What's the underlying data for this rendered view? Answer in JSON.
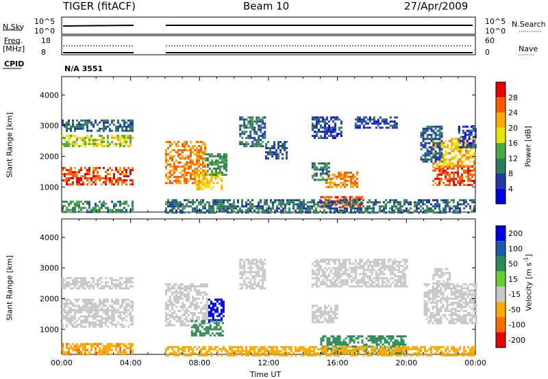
{
  "header": {
    "radar": "TIGER (fitACF)",
    "beam": "Beam 10",
    "date": "27/Apr/2009"
  },
  "summary_panel": {
    "nsky_label": "N.Sky",
    "nsky_ticks": [
      "10^5",
      "10^0"
    ],
    "nsearch_label": "N.Search",
    "nsearch_ticks": [
      "10^5",
      "10^0"
    ],
    "freq_label": "Freq.",
    "freq_unit": "[MHz]",
    "freq_ticks": [
      "18",
      "8"
    ],
    "nave_label": "Nave",
    "nave_ticks": [
      "60",
      "0"
    ],
    "cpid_label": "CPID",
    "cpid_value": "N/A 3551"
  },
  "chart_data": [
    {
      "type": "heatmap",
      "title": "",
      "xlabel": "",
      "ylabel": "Slant Range [km]",
      "xlim": [
        0,
        24
      ],
      "ylim": [
        180,
        4600
      ],
      "ytick_values": [
        1000,
        2000,
        3000,
        4000
      ],
      "ytick_labels": [
        "1000",
        "2000",
        "3000",
        "4000"
      ],
      "colorbar": {
        "label": "Power [dB]",
        "tick_labels": [
          "4",
          "8",
          "12",
          "16",
          "20",
          "24",
          "28"
        ],
        "tick_values": [
          4,
          8,
          12,
          16,
          20,
          24,
          28
        ],
        "range": [
          0,
          32
        ],
        "colors": [
          "#0000e6",
          "#1e3aa8",
          "#2e7d5a",
          "#4aa845",
          "#e6e600",
          "#ffaa00",
          "#ff5a00",
          "#e60000"
        ]
      },
      "regions": [
        {
          "t": [
            0.0,
            4.1
          ],
          "r": [
            1050,
            1650
          ],
          "level": 27
        },
        {
          "t": [
            0.0,
            4.1
          ],
          "r": [
            2300,
            2700
          ],
          "level": 17
        },
        {
          "t": [
            0.0,
            4.1
          ],
          "r": [
            2850,
            3200
          ],
          "level": 8
        },
        {
          "t": [
            0.0,
            4.1
          ],
          "r": [
            180,
            550
          ],
          "level": 11
        },
        {
          "t": [
            6.0,
            8.3
          ],
          "r": [
            1100,
            2500
          ],
          "level": 24
        },
        {
          "t": [
            7.8,
            9.3
          ],
          "r": [
            900,
            1500
          ],
          "level": 20
        },
        {
          "t": [
            8.3,
            9.6
          ],
          "r": [
            1400,
            2100
          ],
          "level": 12
        },
        {
          "t": [
            10.3,
            11.8
          ],
          "r": [
            2300,
            3300
          ],
          "level": 9
        },
        {
          "t": [
            11.8,
            13.0
          ],
          "r": [
            1900,
            2500
          ],
          "level": 8
        },
        {
          "t": [
            14.5,
            16.2
          ],
          "r": [
            2600,
            3300
          ],
          "level": 6
        },
        {
          "t": [
            17.0,
            19.5
          ],
          "r": [
            2900,
            3300
          ],
          "level": 6
        },
        {
          "t": [
            15.3,
            17.2
          ],
          "r": [
            1000,
            1500
          ],
          "level": 24
        },
        {
          "t": [
            14.5,
            15.5
          ],
          "r": [
            1200,
            1800
          ],
          "level": 10
        },
        {
          "t": [
            15.0,
            17.5
          ],
          "r": [
            300,
            700
          ],
          "level": 26
        },
        {
          "t": [
            6.0,
            24.0
          ],
          "r": [
            180,
            600
          ],
          "level": 9
        },
        {
          "t": [
            21.5,
            24.0
          ],
          "r": [
            1050,
            1700
          ],
          "level": 27
        },
        {
          "t": [
            21.5,
            24.0
          ],
          "r": [
            1700,
            2600
          ],
          "level": 21
        },
        {
          "t": [
            20.8,
            22.0
          ],
          "r": [
            1800,
            3000
          ],
          "level": 8
        },
        {
          "t": [
            23.0,
            24.0
          ],
          "r": [
            2300,
            3000
          ],
          "level": 6
        }
      ]
    },
    {
      "type": "heatmap",
      "title": "",
      "xlabel": "Time UT",
      "ylabel": "Slant Range [km]",
      "xlim": [
        0,
        24
      ],
      "ylim": [
        180,
        4600
      ],
      "xtick_values": [
        0,
        4,
        8,
        12,
        16,
        20,
        24
      ],
      "xtick_labels": [
        "00:00",
        "04:00",
        "08:00",
        "12:00",
        "16:00",
        "20:00",
        "00:00"
      ],
      "ytick_values": [
        1000,
        2000,
        3000,
        4000
      ],
      "ytick_labels": [
        "1000",
        "2000",
        "3000",
        "4000"
      ],
      "colorbar": {
        "label": "Velocity [m s",
        "label_superscript": "-1",
        "label_close": "]",
        "tick_labels": [
          "200",
          "100",
          "50",
          "15",
          "-15",
          "-50",
          "-100",
          "-200"
        ],
        "tick_values": [
          200,
          100,
          50,
          15,
          -15,
          -50,
          -100,
          -200
        ],
        "colors": [
          "#0000e6",
          "#1e5aa8",
          "#2e8b57",
          "#66cc33",
          "#c8c8c8",
          "#ffaa00",
          "#ff6a00",
          "#e60000"
        ]
      },
      "regions": [
        {
          "t": [
            0.0,
            4.1
          ],
          "r": [
            1050,
            1650
          ],
          "level": 0
        },
        {
          "t": [
            0.0,
            4.1
          ],
          "r": [
            1650,
            2000
          ],
          "level": 0
        },
        {
          "t": [
            0.0,
            4.1
          ],
          "r": [
            2300,
            2700
          ],
          "level": 0
        },
        {
          "t": [
            0.0,
            4.1
          ],
          "r": [
            180,
            550
          ],
          "level": -40
        },
        {
          "t": [
            6.0,
            8.5
          ],
          "r": [
            1100,
            2500
          ],
          "level": 0
        },
        {
          "t": [
            8.5,
            9.4
          ],
          "r": [
            1200,
            2000
          ],
          "level": 150
        },
        {
          "t": [
            7.5,
            9.3
          ],
          "r": [
            800,
            1300
          ],
          "level": 30
        },
        {
          "t": [
            10.3,
            11.8
          ],
          "r": [
            2300,
            3300
          ],
          "level": 0
        },
        {
          "t": [
            14.5,
            16.0
          ],
          "r": [
            1200,
            1800
          ],
          "level": 0
        },
        {
          "t": [
            14.5,
            20.0
          ],
          "r": [
            2400,
            3300
          ],
          "level": 0
        },
        {
          "t": [
            15.0,
            20.0
          ],
          "r": [
            200,
            800
          ],
          "level": 30
        },
        {
          "t": [
            6.0,
            24.0
          ],
          "r": [
            180,
            450
          ],
          "level": -30
        },
        {
          "t": [
            21.0,
            24.0
          ],
          "r": [
            1200,
            2500
          ],
          "level": 0
        },
        {
          "t": [
            21.5,
            22.5
          ],
          "r": [
            2500,
            3000
          ],
          "level": 0
        }
      ]
    }
  ]
}
